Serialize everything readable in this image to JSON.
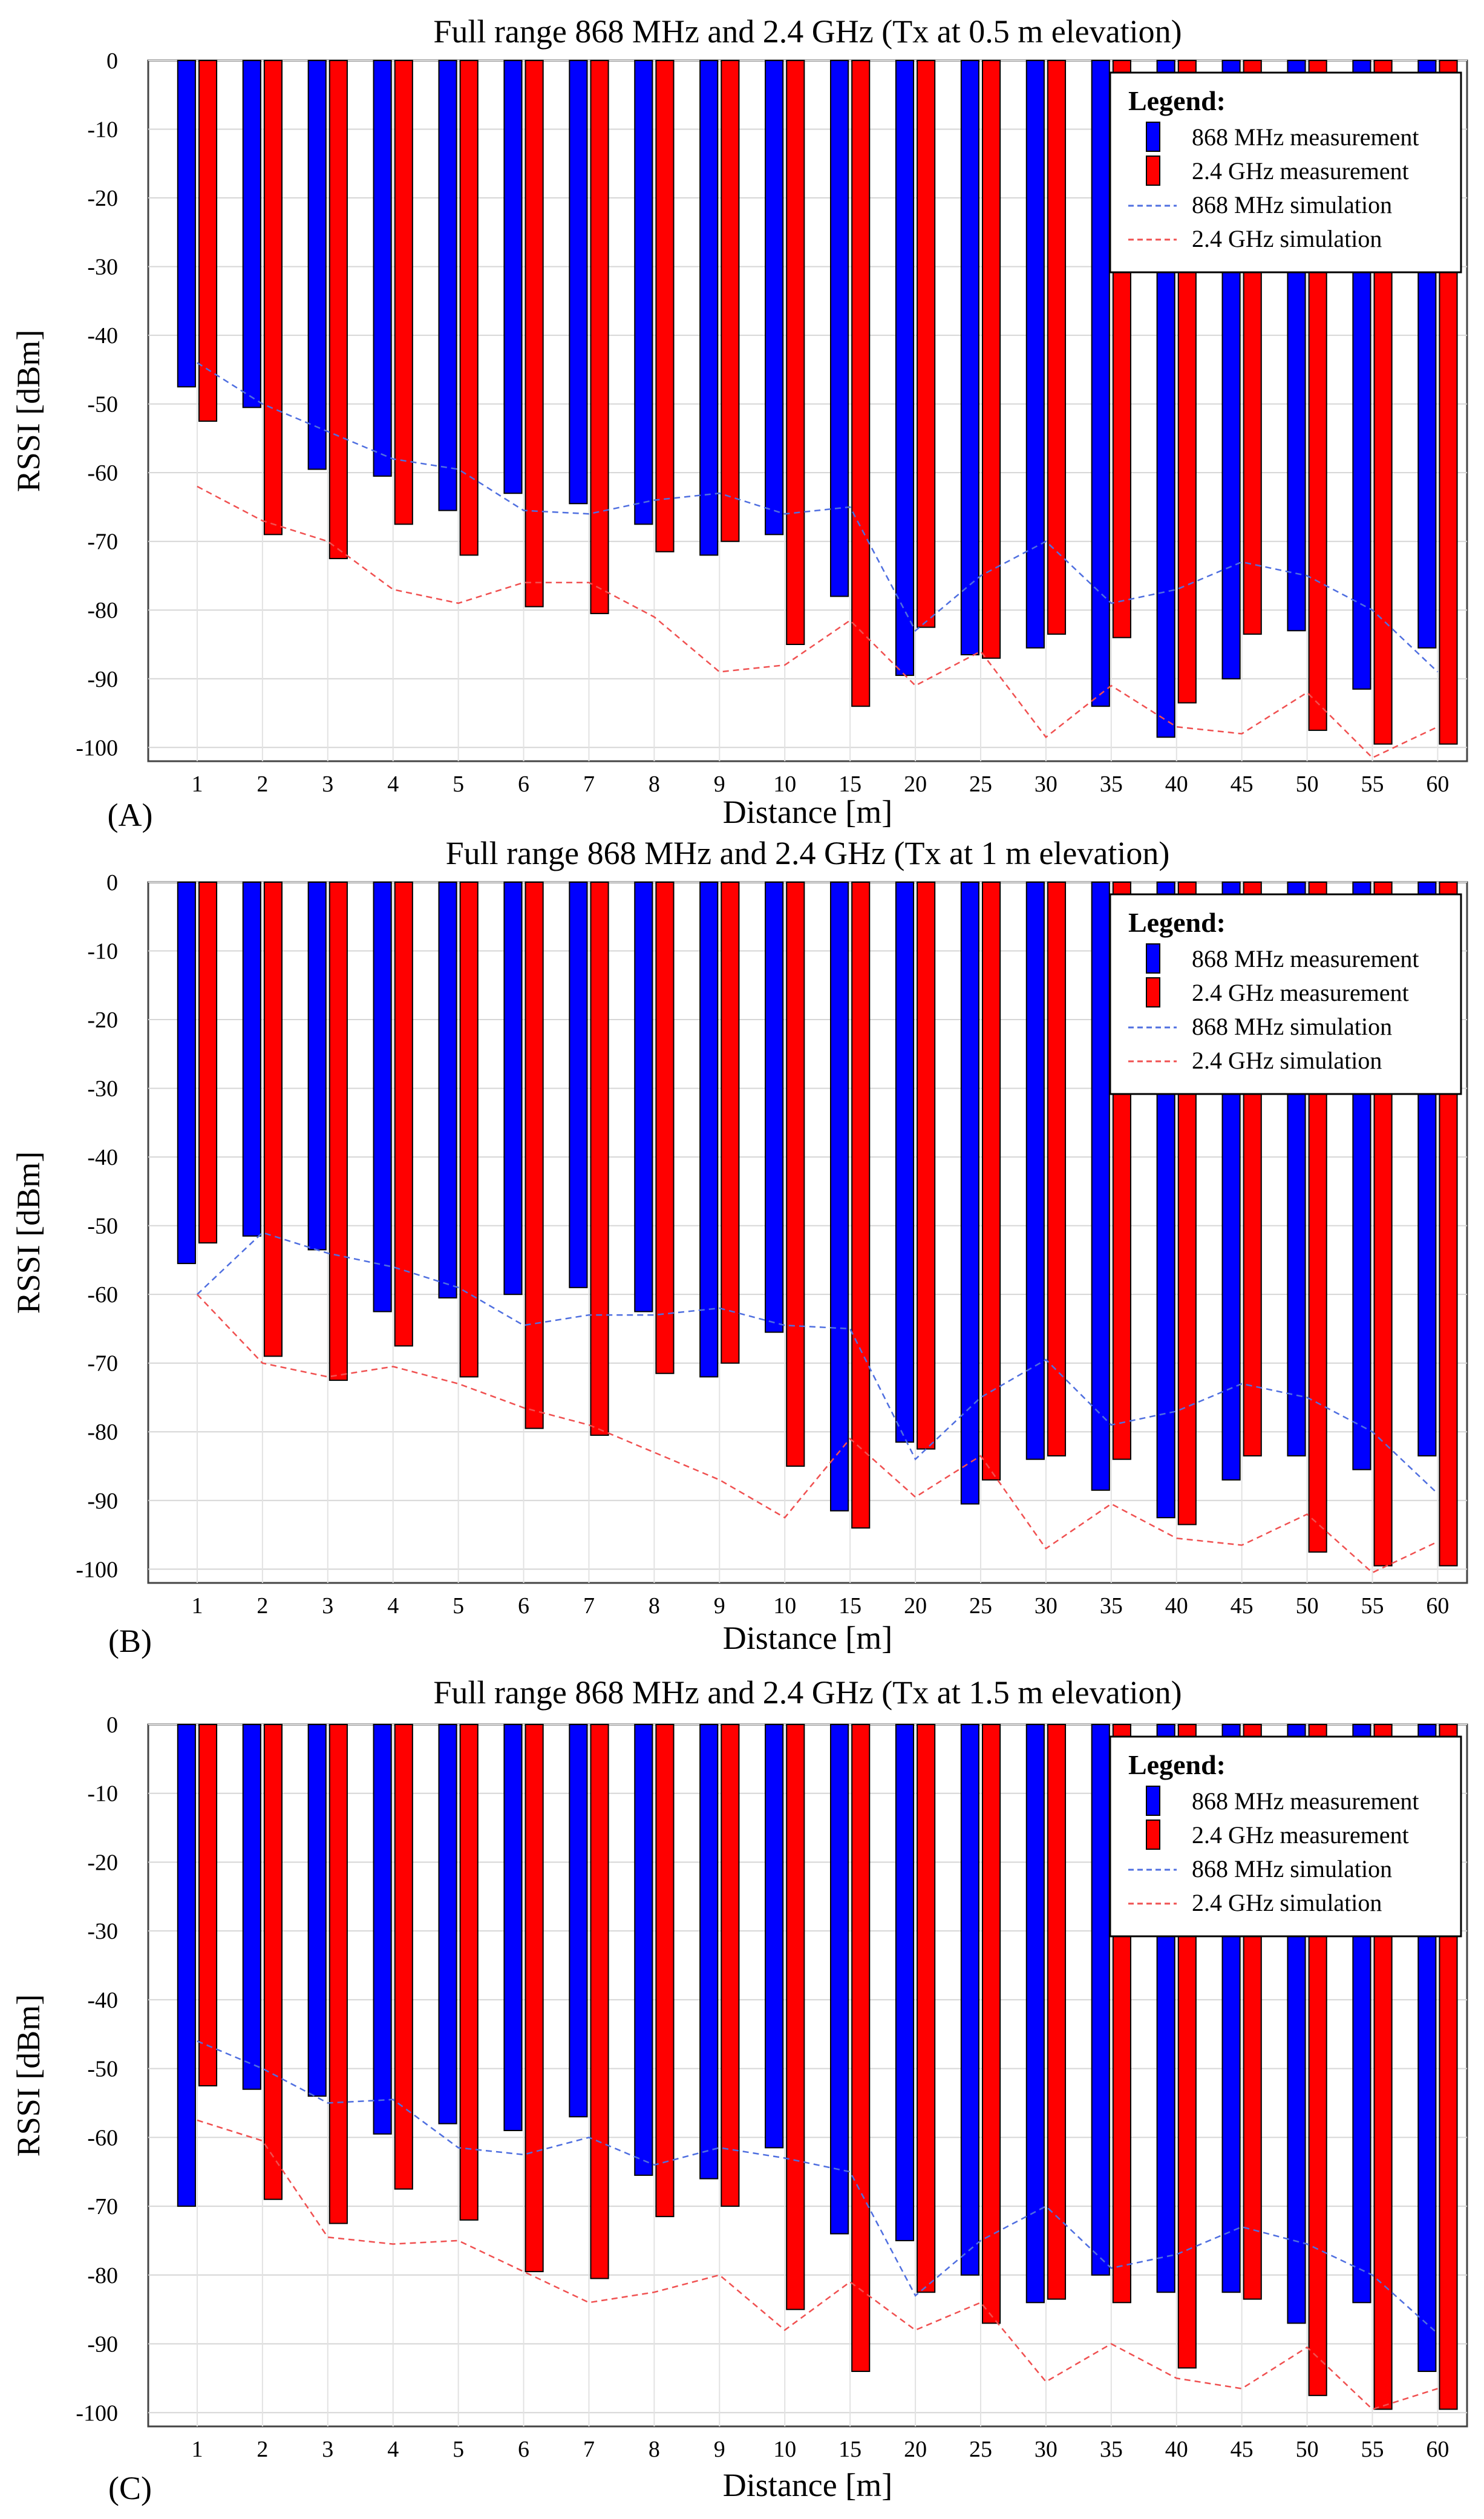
{
  "charts": [
    {
      "type": "bar",
      "panel_label": "(A)",
      "title": "Full range 868 MHz and 2.4 GHz (Tx at 0.5 m elevation)",
      "xlabel": "Distance [m]",
      "ylabel": "RSSI [dBm]",
      "ylim": [
        -102,
        0
      ],
      "yticks": [
        "0",
        "-10",
        "-20",
        "-30",
        "-40",
        "-50",
        "-60",
        "-70",
        "-80",
        "-90",
        "-100"
      ],
      "categories": [
        "1",
        "2",
        "3",
        "4",
        "5",
        "6",
        "7",
        "8",
        "9",
        "10",
        "15",
        "20",
        "25",
        "30",
        "35",
        "40",
        "45",
        "50",
        "55",
        "60"
      ],
      "series": [
        {
          "name": "868 MHz measurement",
          "kind": "bar",
          "color": "#0000ff",
          "values": [
            -47.5,
            -50.5,
            -59.5,
            -60.5,
            -65.5,
            -63,
            -64.5,
            -67.5,
            -72,
            -69,
            -78,
            -89.5,
            -86.5,
            -85.5,
            -94,
            -98.5,
            -90,
            -83,
            -91.5,
            -85.5
          ]
        },
        {
          "name": "2.4 GHz measurement",
          "kind": "bar",
          "color": "#ff0000",
          "values": [
            -52.5,
            -69,
            -72.5,
            -67.5,
            -72,
            -79.5,
            -80.5,
            -71.5,
            -70,
            -85,
            -94,
            -82.5,
            -87,
            -83.5,
            -84,
            -93.5,
            -83.5,
            -97.5,
            -99.5,
            -99.5
          ]
        },
        {
          "name": "868 MHz simulation",
          "kind": "line",
          "color": "#4f6fe0",
          "values": [
            -44,
            -50,
            -54,
            -58,
            -59.5,
            -65.5,
            -66,
            -64,
            -63,
            -66,
            -65,
            -83,
            -75,
            -70,
            -79,
            -77,
            -73,
            -75,
            -80,
            -89
          ]
        },
        {
          "name": "2.4 GHz simulation",
          "kind": "line",
          "color": "#f05050",
          "values": [
            -62,
            -67,
            -70,
            -77,
            -79,
            -76,
            -76,
            -81,
            -89,
            -88,
            -81.5,
            -91,
            -86,
            -98.5,
            -91,
            -97,
            -98,
            -92,
            -101.5,
            -97
          ]
        }
      ],
      "legend": {
        "title": "Legend:",
        "location": "top-right"
      }
    },
    {
      "type": "bar",
      "panel_label": "(B)",
      "title": "Full range 868 MHz and 2.4 GHz (Tx at 1 m elevation)",
      "xlabel": "Distance [m]",
      "ylabel": "RSSI [dBm]",
      "ylim": [
        -102,
        0
      ],
      "yticks": [
        "0",
        "-10",
        "-20",
        "-30",
        "-40",
        "-50",
        "-60",
        "-70",
        "-80",
        "-90",
        "-100"
      ],
      "categories": [
        "1",
        "2",
        "3",
        "4",
        "5",
        "6",
        "7",
        "8",
        "9",
        "10",
        "15",
        "20",
        "25",
        "30",
        "35",
        "40",
        "45",
        "50",
        "55",
        "60"
      ],
      "series": [
        {
          "name": "868 MHz measurement",
          "kind": "bar",
          "color": "#0000ff",
          "values": [
            -55.5,
            -51.5,
            -53.5,
            -62.5,
            -60.5,
            -60,
            -59,
            -62.5,
            -72,
            -65.5,
            -91.5,
            -81.5,
            -90.5,
            -84,
            -88.5,
            -92.5,
            -87,
            -83.5,
            -85.5,
            -83.5
          ]
        },
        {
          "name": "2.4 GHz measurement",
          "kind": "bar",
          "color": "#ff0000",
          "values": [
            -52.5,
            -69,
            -72.5,
            -67.5,
            -72,
            -79.5,
            -80.5,
            -71.5,
            -70,
            -85,
            -94,
            -82.5,
            -87,
            -83.5,
            -84,
            -93.5,
            -83.5,
            -97.5,
            -99.5,
            -99.5
          ]
        },
        {
          "name": "868 MHz simulation",
          "kind": "line",
          "color": "#4f6fe0",
          "values": [
            -60,
            -51,
            -54,
            -56,
            -59,
            -64.5,
            -63,
            -63,
            -62,
            -64.5,
            -65,
            -84,
            -75,
            -69.5,
            -79,
            -77,
            -73,
            -75,
            -80,
            -89
          ]
        },
        {
          "name": "2.4 GHz simulation",
          "kind": "line",
          "color": "#f05050",
          "values": [
            -60,
            -70,
            -72,
            -70.5,
            -73,
            -76.5,
            -79,
            -83,
            -87,
            -92.5,
            -81,
            -89.5,
            -83.5,
            -97,
            -90.5,
            -95.5,
            -96.5,
            -92,
            -100.5,
            -96
          ]
        }
      ],
      "legend": {
        "title": "Legend:",
        "location": "top-right"
      }
    },
    {
      "type": "bar",
      "panel_label": "(C)",
      "title": "Full range 868 MHz and 2.4 GHz (Tx at 1.5 m elevation)",
      "xlabel": "Distance [m]",
      "ylabel": "RSSI [dBm]",
      "ylim": [
        -102,
        0
      ],
      "yticks": [
        "0",
        "-10",
        "-20",
        "-30",
        "-40",
        "-50",
        "-60",
        "-70",
        "-80",
        "-90",
        "-100"
      ],
      "categories": [
        "1",
        "2",
        "3",
        "4",
        "5",
        "6",
        "7",
        "8",
        "9",
        "10",
        "15",
        "20",
        "25",
        "30",
        "35",
        "40",
        "45",
        "50",
        "55",
        "60"
      ],
      "series": [
        {
          "name": "868 MHz measurement",
          "kind": "bar",
          "color": "#0000ff",
          "values": [
            -70,
            -53,
            -54,
            -59.5,
            -58,
            -59,
            -57,
            -65.5,
            -66,
            -61.5,
            -74,
            -75,
            -80,
            -84,
            -80,
            -82.5,
            -82.5,
            -87,
            -84,
            -94
          ]
        },
        {
          "name": "2.4 GHz measurement",
          "kind": "bar",
          "color": "#ff0000",
          "values": [
            -52.5,
            -69,
            -72.5,
            -67.5,
            -72,
            -79.5,
            -80.5,
            -71.5,
            -70,
            -85,
            -94,
            -82.5,
            -87,
            -83.5,
            -84,
            -93.5,
            -83.5,
            -97.5,
            -99.5,
            -99.5
          ]
        },
        {
          "name": "868 MHz simulation",
          "kind": "line",
          "color": "#4f6fe0",
          "values": [
            -46,
            -50,
            -55,
            -54.5,
            -61.5,
            -62.5,
            -60,
            -64,
            -61.5,
            -63,
            -65,
            -83,
            -75,
            -70,
            -79,
            -77,
            -73,
            -75.5,
            -80,
            -88.5
          ]
        },
        {
          "name": "2.4 GHz simulation",
          "kind": "line",
          "color": "#f05050",
          "values": [
            -57.5,
            -60.5,
            -74.5,
            -75.5,
            -75,
            -79.5,
            -84,
            -82.5,
            -80,
            -88,
            -81,
            -88,
            -84,
            -95.5,
            -90,
            -95,
            -96.5,
            -90.5,
            -99.5,
            -96.5
          ]
        }
      ],
      "legend": {
        "title": "Legend:",
        "location": "top-right"
      }
    }
  ]
}
